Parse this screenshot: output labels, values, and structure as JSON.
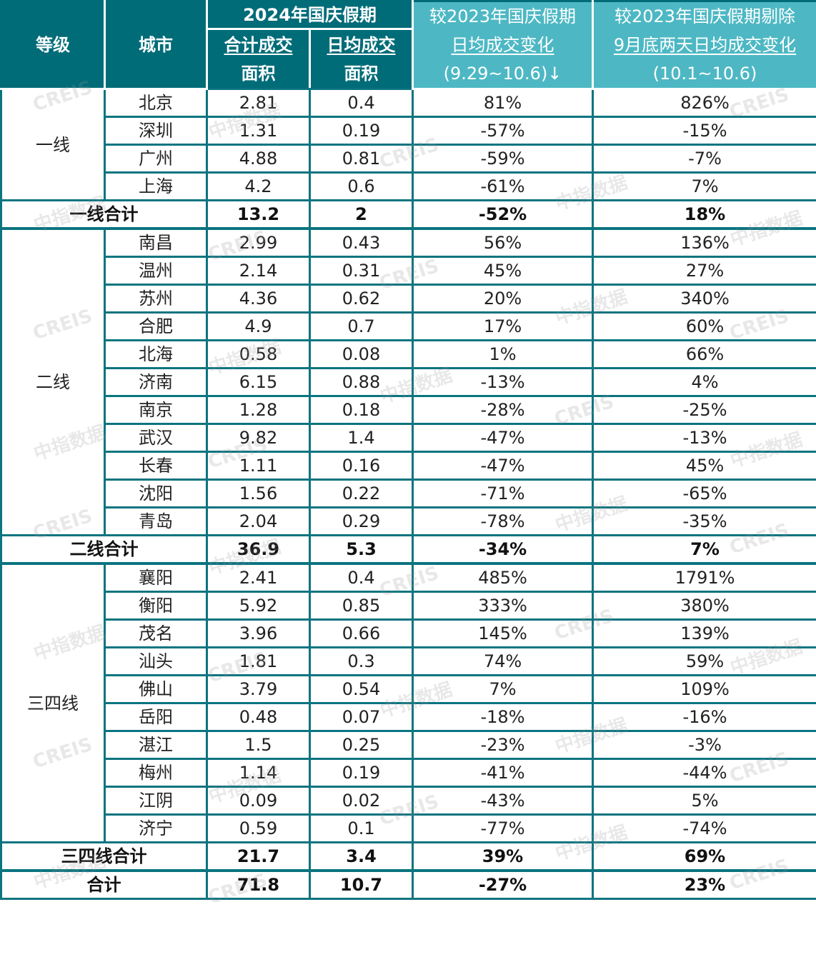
{
  "header": {
    "tier": "等级",
    "city": "城市",
    "group_2024": "2024年国庆假期",
    "total_area_line1": "合计成交",
    "total_area_line2": "面积",
    "daily_area_line1": "日均成交",
    "daily_area_line2": "面积",
    "yoy_line1": "较2023年国庆假期",
    "yoy_line2": "日均成交变化",
    "yoy_line3": "(9.29~10.6)↓",
    "yoy_ex_line1": "较2023年国庆假期剔除",
    "yoy_ex_line2": "9月底两天日均成交变化",
    "yoy_ex_line3": "(10.1~10.6)"
  },
  "colors": {
    "header_dark": "#006c78",
    "header_light": "#4db8c4",
    "border": "#0a7480"
  },
  "watermark": {
    "cn": "中指数据",
    "en": "CREIS"
  },
  "tiers": [
    {
      "name": "一线",
      "rows": [
        {
          "city": "北京",
          "total": "2.81",
          "daily": "0.4",
          "yoy": "81%",
          "yoy_ex": "826%"
        },
        {
          "city": "深圳",
          "total": "1.31",
          "daily": "0.19",
          "yoy": "-57%",
          "yoy_ex": "-15%"
        },
        {
          "city": "广州",
          "total": "4.88",
          "daily": "0.81",
          "yoy": "-59%",
          "yoy_ex": "-7%"
        },
        {
          "city": "上海",
          "total": "4.2",
          "daily": "0.6",
          "yoy": "-61%",
          "yoy_ex": "7%"
        }
      ],
      "subtotal": {
        "label": "一线合计",
        "total": "13.2",
        "daily": "2",
        "yoy": "-52%",
        "yoy_ex": "18%"
      }
    },
    {
      "name": "二线",
      "rows": [
        {
          "city": "南昌",
          "total": "2.99",
          "daily": "0.43",
          "yoy": "56%",
          "yoy_ex": "136%"
        },
        {
          "city": "温州",
          "total": "2.14",
          "daily": "0.31",
          "yoy": "45%",
          "yoy_ex": "27%"
        },
        {
          "city": "苏州",
          "total": "4.36",
          "daily": "0.62",
          "yoy": "20%",
          "yoy_ex": "340%"
        },
        {
          "city": "合肥",
          "total": "4.9",
          "daily": "0.7",
          "yoy": "17%",
          "yoy_ex": "60%"
        },
        {
          "city": "北海",
          "total": "0.58",
          "daily": "0.08",
          "yoy": "1%",
          "yoy_ex": "66%"
        },
        {
          "city": "济南",
          "total": "6.15",
          "daily": "0.88",
          "yoy": "-13%",
          "yoy_ex": "4%"
        },
        {
          "city": "南京",
          "total": "1.28",
          "daily": "0.18",
          "yoy": "-28%",
          "yoy_ex": "-25%"
        },
        {
          "city": "武汉",
          "total": "9.82",
          "daily": "1.4",
          "yoy": "-47%",
          "yoy_ex": "-13%"
        },
        {
          "city": "长春",
          "total": "1.11",
          "daily": "0.16",
          "yoy": "-47%",
          "yoy_ex": "45%"
        },
        {
          "city": "沈阳",
          "total": "1.56",
          "daily": "0.22",
          "yoy": "-71%",
          "yoy_ex": "-65%"
        },
        {
          "city": "青岛",
          "total": "2.04",
          "daily": "0.29",
          "yoy": "-78%",
          "yoy_ex": "-35%"
        }
      ],
      "subtotal": {
        "label": "二线合计",
        "total": "36.9",
        "daily": "5.3",
        "yoy": "-34%",
        "yoy_ex": "7%"
      }
    },
    {
      "name": "三四线",
      "rows": [
        {
          "city": "襄阳",
          "total": "2.41",
          "daily": "0.4",
          "yoy": "485%",
          "yoy_ex": "1791%"
        },
        {
          "city": "衡阳",
          "total": "5.92",
          "daily": "0.85",
          "yoy": "333%",
          "yoy_ex": "380%"
        },
        {
          "city": "茂名",
          "total": "3.96",
          "daily": "0.66",
          "yoy": "145%",
          "yoy_ex": "139%"
        },
        {
          "city": "汕头",
          "total": "1.81",
          "daily": "0.3",
          "yoy": "74%",
          "yoy_ex": "59%"
        },
        {
          "city": "佛山",
          "total": "3.79",
          "daily": "0.54",
          "yoy": "7%",
          "yoy_ex": "109%"
        },
        {
          "city": "岳阳",
          "total": "0.48",
          "daily": "0.07",
          "yoy": "-18%",
          "yoy_ex": "-16%"
        },
        {
          "city": "湛江",
          "total": "1.5",
          "daily": "0.25",
          "yoy": "-23%",
          "yoy_ex": "-3%"
        },
        {
          "city": "梅州",
          "total": "1.14",
          "daily": "0.19",
          "yoy": "-41%",
          "yoy_ex": "-44%"
        },
        {
          "city": "江阴",
          "total": "0.09",
          "daily": "0.02",
          "yoy": "-43%",
          "yoy_ex": "5%"
        },
        {
          "city": "济宁",
          "total": "0.59",
          "daily": "0.1",
          "yoy": "-77%",
          "yoy_ex": "-74%"
        }
      ],
      "subtotal": {
        "label": "三四线合计",
        "total": "21.7",
        "daily": "3.4",
        "yoy": "39%",
        "yoy_ex": "69%"
      }
    }
  ],
  "grand_total": {
    "label": "合计",
    "total": "71.8",
    "daily": "10.7",
    "yoy": "-27%",
    "yoy_ex": "23%"
  }
}
